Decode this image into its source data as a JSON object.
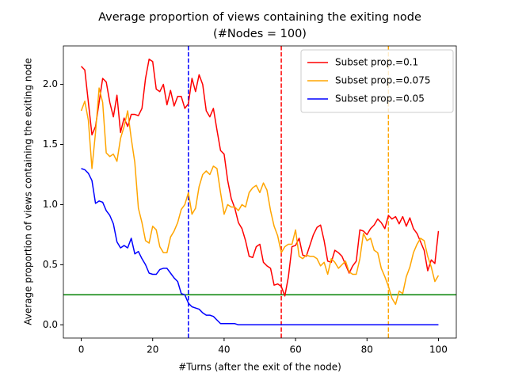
{
  "chart_data": {
    "type": "line",
    "title": "Average proportion of views containing the exiting node",
    "subtitle": "(#Nodes = 100)",
    "x_label": "#Turns (after the exit of the node)",
    "y_label": "Average proportion of views containing the exiting node",
    "x": [
      0,
      1,
      2,
      3,
      4,
      5,
      6,
      7,
      8,
      9,
      10,
      11,
      12,
      13,
      14,
      15,
      16,
      17,
      18,
      19,
      20,
      21,
      22,
      23,
      24,
      25,
      26,
      27,
      28,
      29,
      30,
      31,
      32,
      33,
      34,
      35,
      36,
      37,
      38,
      39,
      40,
      41,
      42,
      43,
      44,
      45,
      46,
      47,
      48,
      49,
      50,
      51,
      52,
      53,
      54,
      55,
      56,
      57,
      58,
      59,
      60,
      61,
      62,
      63,
      64,
      65,
      66,
      67,
      68,
      69,
      70,
      71,
      72,
      73,
      74,
      75,
      76,
      77,
      78,
      79,
      80,
      81,
      82,
      83,
      84,
      85,
      86,
      87,
      88,
      89,
      90,
      91,
      92,
      93,
      94,
      95,
      96,
      97,
      98,
      99,
      100
    ],
    "series": [
      {
        "name": "Subset prop.=0.1",
        "color": "#ff0000",
        "values": [
          2.15,
          2.12,
          1.85,
          1.58,
          1.65,
          1.85,
          2.05,
          2.02,
          1.85,
          1.73,
          1.91,
          1.6,
          1.72,
          1.65,
          1.75,
          1.75,
          1.74,
          1.8,
          2.05,
          2.21,
          2.19,
          1.96,
          1.94,
          2.0,
          1.83,
          1.95,
          1.82,
          1.9,
          1.9,
          1.8,
          1.84,
          2.05,
          1.94,
          2.08,
          2.0,
          1.78,
          1.73,
          1.8,
          1.62,
          1.45,
          1.42,
          1.2,
          1.05,
          0.97,
          0.85,
          0.8,
          0.7,
          0.57,
          0.56,
          0.65,
          0.67,
          0.52,
          0.49,
          0.47,
          0.33,
          0.34,
          0.32,
          0.24,
          0.4,
          0.65,
          0.66,
          0.72,
          0.58,
          0.57,
          0.66,
          0.75,
          0.81,
          0.83,
          0.7,
          0.53,
          0.52,
          0.62,
          0.6,
          0.57,
          0.5,
          0.43,
          0.49,
          0.53,
          0.79,
          0.78,
          0.75,
          0.8,
          0.83,
          0.88,
          0.85,
          0.8,
          0.91,
          0.88,
          0.9,
          0.84,
          0.9,
          0.82,
          0.89,
          0.8,
          0.76,
          0.69,
          0.62,
          0.45,
          0.54,
          0.51,
          0.78
        ]
      },
      {
        "name": "Subset prop.=0.075",
        "color": "#ffa500",
        "values": [
          1.78,
          1.86,
          1.7,
          1.3,
          1.6,
          1.97,
          1.85,
          1.43,
          1.4,
          1.42,
          1.36,
          1.55,
          1.65,
          1.78,
          1.55,
          1.35,
          0.97,
          0.85,
          0.7,
          0.68,
          0.82,
          0.79,
          0.65,
          0.6,
          0.6,
          0.73,
          0.78,
          0.85,
          0.96,
          1.0,
          1.1,
          0.92,
          0.97,
          1.15,
          1.25,
          1.28,
          1.25,
          1.32,
          1.3,
          1.1,
          0.92,
          1.0,
          0.98,
          0.98,
          0.95,
          1.0,
          0.98,
          1.1,
          1.14,
          1.16,
          1.1,
          1.18,
          1.12,
          0.95,
          0.82,
          0.74,
          0.6,
          0.65,
          0.67,
          0.67,
          0.79,
          0.57,
          0.55,
          0.58,
          0.57,
          0.57,
          0.55,
          0.49,
          0.52,
          0.42,
          0.55,
          0.52,
          0.47,
          0.5,
          0.53,
          0.44,
          0.42,
          0.42,
          0.55,
          0.76,
          0.7,
          0.72,
          0.62,
          0.6,
          0.47,
          0.4,
          0.32,
          0.22,
          0.17,
          0.28,
          0.26,
          0.4,
          0.48,
          0.6,
          0.67,
          0.72,
          0.7,
          0.57,
          0.48,
          0.36,
          0.41
        ]
      },
      {
        "name": "Subset prop.=0.05",
        "color": "#0000ff",
        "values": [
          1.3,
          1.29,
          1.26,
          1.2,
          1.01,
          1.03,
          1.02,
          0.95,
          0.91,
          0.84,
          0.69,
          0.64,
          0.66,
          0.64,
          0.72,
          0.59,
          0.61,
          0.55,
          0.5,
          0.43,
          0.42,
          0.42,
          0.46,
          0.47,
          0.47,
          0.43,
          0.39,
          0.36,
          0.26,
          0.25,
          0.18,
          0.15,
          0.14,
          0.13,
          0.1,
          0.08,
          0.08,
          0.07,
          0.04,
          0.01,
          0.01,
          0.01,
          0.01,
          0.01,
          0,
          0,
          0,
          0,
          0,
          0,
          0,
          0,
          0,
          0,
          0,
          0,
          0,
          0,
          0,
          0,
          0,
          0,
          0,
          0,
          0,
          0,
          0,
          0,
          0,
          0,
          0,
          0,
          0,
          0,
          0,
          0,
          0,
          0,
          0,
          0,
          0,
          0,
          0,
          0,
          0,
          0,
          0,
          0,
          0,
          0,
          0,
          0,
          0,
          0,
          0,
          0,
          0,
          0,
          0,
          0,
          0
        ]
      }
    ],
    "vlines": [
      {
        "x": 30,
        "color": "#0000ff"
      },
      {
        "x": 56,
        "color": "#ff0000"
      },
      {
        "x": 86,
        "color": "#ffa500"
      }
    ],
    "hlines": [
      {
        "y": 0.25,
        "color": "#008000"
      }
    ],
    "xlim": [
      -5,
      105
    ],
    "ylim": [
      -0.11,
      2.32
    ],
    "xticks": [
      0,
      20,
      40,
      60,
      80,
      100
    ],
    "yticks": [
      {
        "value": 0,
        "label": "0.0"
      },
      0.5,
      {
        "value": 1,
        "label": "1.0"
      },
      1.5,
      {
        "value": 2,
        "label": "2.0"
      }
    ],
    "legend": "upper right"
  }
}
